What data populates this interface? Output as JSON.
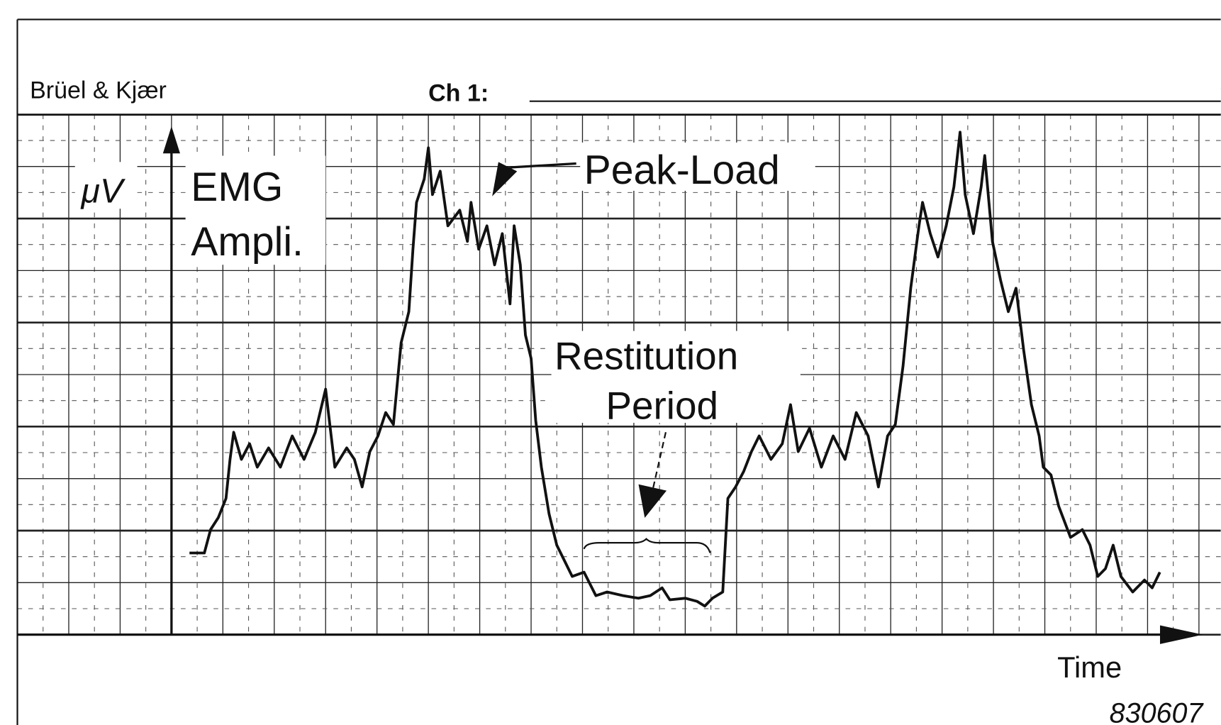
{
  "chart_data": {
    "type": "line",
    "brand": "Brüel & Kjær",
    "channel_label": "Ch 1:",
    "y_unit": "μV",
    "y_label": [
      "EMG",
      "Ampli."
    ],
    "annotations": {
      "peak": "Peak-Load",
      "rest": [
        "Restitution",
        "Period"
      ]
    },
    "x_label": "Time",
    "figure_id": "830607",
    "color": "#111111",
    "grid": true,
    "xlim": [
      -3,
      20
    ],
    "ylim": [
      0,
      10
    ],
    "x": [
      0.35,
      0.64,
      0.76,
      0.91,
      1.06,
      1.14,
      1.21,
      1.36,
      1.52,
      1.67,
      1.89,
      2.12,
      2.35,
      2.58,
      2.8,
      3.0,
      3.18,
      3.41,
      3.56,
      3.71,
      3.86,
      4.02,
      4.17,
      4.32,
      4.47,
      4.62,
      4.7,
      4.77,
      4.92,
      5.0,
      5.08,
      5.23,
      5.38,
      5.61,
      5.76,
      5.83,
      5.98,
      6.14,
      6.29,
      6.44,
      6.59,
      6.67,
      6.79,
      6.89,
      7.0,
      7.09,
      7.2,
      7.35,
      7.5,
      7.65,
      7.8,
      8.03,
      8.26,
      8.48,
      8.79,
      9.09,
      9.32,
      9.55,
      9.7,
      10.0,
      10.23,
      10.38,
      10.53,
      10.73,
      10.83,
      10.98,
      11.14,
      11.29,
      11.44,
      11.67,
      11.89,
      12.05,
      12.2,
      12.42,
      12.65,
      12.88,
      13.11,
      13.33,
      13.56,
      13.76,
      13.94,
      14.09,
      14.24,
      14.39,
      14.55,
      14.62,
      14.77,
      14.92,
      15.08,
      15.23,
      15.35,
      15.45,
      15.61,
      15.76,
      15.83,
      15.98,
      16.14,
      16.29,
      16.44,
      16.59,
      16.74,
      16.89,
      16.97,
      17.12,
      17.27,
      17.5,
      17.73,
      17.88,
      18.03,
      18.18,
      18.33,
      18.48,
      18.71,
      18.94,
      19.09,
      19.24
    ],
    "values": [
      1.57,
      1.57,
      2.02,
      2.25,
      2.62,
      3.37,
      3.89,
      3.37,
      3.67,
      3.22,
      3.59,
      3.22,
      3.82,
      3.37,
      3.89,
      4.72,
      3.22,
      3.59,
      3.37,
      2.84,
      3.52,
      3.82,
      4.27,
      4.04,
      5.61,
      6.21,
      7.41,
      8.31,
      8.76,
      9.36,
      8.46,
      8.91,
      7.86,
      8.16,
      7.56,
      8.31,
      7.41,
      7.86,
      7.11,
      7.71,
      6.36,
      7.86,
      7.11,
      5.76,
      5.31,
      4.12,
      3.22,
      2.32,
      1.72,
      1.42,
      1.12,
      1.2,
      0.75,
      0.82,
      0.75,
      0.7,
      0.75,
      0.9,
      0.67,
      0.7,
      0.64,
      0.55,
      0.7,
      0.82,
      2.62,
      2.84,
      3.14,
      3.52,
      3.82,
      3.37,
      3.67,
      4.42,
      3.52,
      3.97,
      3.22,
      3.82,
      3.37,
      4.27,
      3.82,
      2.84,
      3.82,
      4.04,
      5.16,
      6.66,
      7.86,
      8.31,
      7.71,
      7.26,
      7.86,
      8.61,
      9.66,
      8.46,
      7.71,
      8.61,
      9.21,
      7.56,
      6.81,
      6.21,
      6.66,
      5.46,
      4.42,
      3.82,
      3.22,
      3.07,
      2.47,
      1.87,
      2.02,
      1.72,
      1.12,
      1.27,
      1.72,
      1.12,
      0.82,
      1.05,
      0.9,
      1.2
    ]
  }
}
